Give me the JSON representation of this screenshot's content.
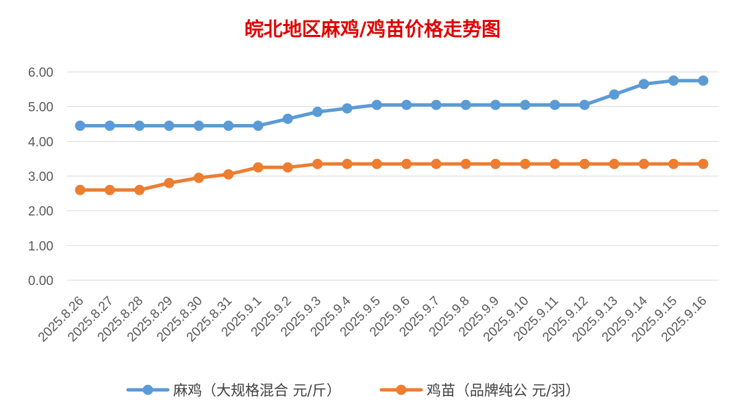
{
  "chart_data": {
    "type": "line",
    "title": "皖北地区麻鸡/鸡苗价格走势图",
    "categories": [
      "2025.8.26",
      "2025.8.27",
      "2025.8.28",
      "2025.8.29",
      "2025.8.30",
      "2025.8.31",
      "2025.9.1",
      "2025.9.2",
      "2025.9.3",
      "2025.9.4",
      "2025.9.5",
      "2025.9.6",
      "2025.9.7",
      "2025.9.8",
      "2025.9.9",
      "2025.9.10",
      "2025.9.11",
      "2025.9.12",
      "2025.9.13",
      "2025.9.14",
      "2025.9.15",
      "2025.9.16"
    ],
    "series": [
      {
        "name": "麻鸡（大规格混合 元/斤）",
        "color": "#5b9bd5",
        "values": [
          4.45,
          4.45,
          4.45,
          4.45,
          4.45,
          4.45,
          4.45,
          4.65,
          4.85,
          4.95,
          5.05,
          5.05,
          5.05,
          5.05,
          5.05,
          5.05,
          5.05,
          5.05,
          5.35,
          5.65,
          5.75,
          5.75
        ]
      },
      {
        "name": "鸡苗（品牌纯公 元/羽）",
        "color": "#ed7d31",
        "values": [
          2.6,
          2.6,
          2.6,
          2.8,
          2.95,
          3.05,
          3.25,
          3.25,
          3.35,
          3.35,
          3.35,
          3.35,
          3.35,
          3.35,
          3.35,
          3.35,
          3.35,
          3.35,
          3.35,
          3.35,
          3.35,
          3.35
        ]
      }
    ],
    "ylim": [
      0,
      6
    ],
    "yticks": [
      "0.00",
      "1.00",
      "2.00",
      "3.00",
      "4.00",
      "5.00",
      "6.00"
    ],
    "grid": true,
    "legend": "bottom",
    "title_color": "#e00000"
  }
}
